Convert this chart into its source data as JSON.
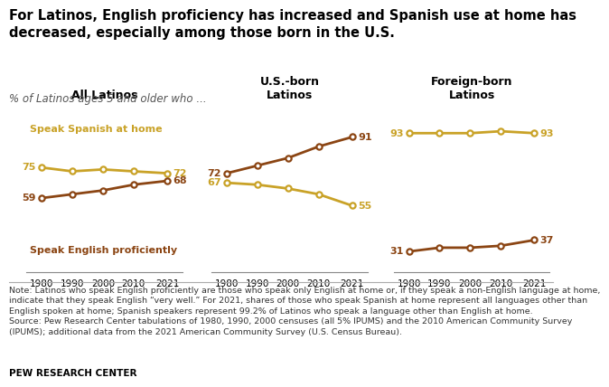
{
  "title": "For Latinos, English proficiency has increased and Spanish use at home has\ndecreased, especially among those born in the U.S.",
  "subtitle": "% of Latinos ages 5 and older who ...",
  "years": [
    1980,
    1990,
    2000,
    2010,
    2021
  ],
  "panels": [
    {
      "title": "All Latinos",
      "spanish": [
        75,
        73,
        74,
        73,
        72
      ],
      "english": [
        59,
        61,
        63,
        66,
        68
      ]
    },
    {
      "title": "U.S.-born\nLatinos",
      "spanish": [
        67,
        66,
        64,
        61,
        55
      ],
      "english": [
        72,
        76,
        80,
        86,
        91
      ]
    },
    {
      "title": "Foreign-born\nLatinos",
      "spanish": [
        93,
        93,
        93,
        94,
        93
      ],
      "english": [
        31,
        33,
        33,
        34,
        37
      ]
    }
  ],
  "spanish_color": "#C9A227",
  "english_color": "#8B4513",
  "label_spanish": "Speak Spanish at home",
  "label_english": "Speak English proficiently",
  "note_line1": "Note: Latinos who speak English proficiently are those who speak only English at home or, if they speak a non-English language at home,",
  "note_line2": "indicate that they speak English “very well.” For 2021, shares of those who speak Spanish at home represent all languages other than",
  "note_line3": "English spoken at home; Spanish speakers represent 99.2% of Latinos who speak a language other than English at home.",
  "note_line4": "Source: Pew Research Center tabulations of 1980, 1990, 2000 censuses (all 5% IPUMS) and the 2010 American Community Survey",
  "note_line5": "(IPUMS); additional data from the 2021 American Community Survey (U.S. Census Bureau).",
  "source_label": "PEW RESEARCH CENTER",
  "background_color": "#FFFFFF",
  "title_fontsize": 10.5,
  "subtitle_fontsize": 8.5,
  "panel_title_fontsize": 9,
  "axis_fontsize": 7.5,
  "label_fontsize": 8,
  "note_fontsize": 6.8,
  "source_fontsize": 7.5
}
